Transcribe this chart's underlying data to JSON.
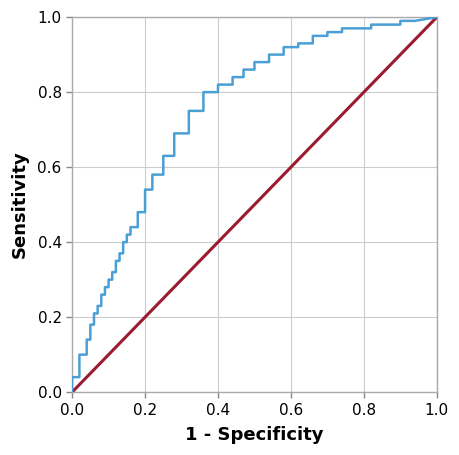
{
  "title": "",
  "xlabel": "1 - Specificity",
  "ylabel": "Sensitivity",
  "xlim": [
    0.0,
    1.0
  ],
  "ylim": [
    0.0,
    1.0
  ],
  "xticks": [
    0.0,
    0.2,
    0.4,
    0.6,
    0.8,
    1.0
  ],
  "yticks": [
    0.0,
    0.2,
    0.4,
    0.6,
    0.8,
    1.0
  ],
  "roc_color": "#4a9fd4",
  "diag_color": "#9b1b30",
  "roc_linewidth": 1.8,
  "diag_linewidth": 2.2,
  "grid_color": "#cccccc",
  "background_color": "#ffffff",
  "xlabel_fontsize": 13,
  "ylabel_fontsize": 13,
  "tick_fontsize": 11,
  "roc_x": [
    0.0,
    0.0,
    0.02,
    0.02,
    0.04,
    0.04,
    0.05,
    0.05,
    0.06,
    0.06,
    0.07,
    0.07,
    0.08,
    0.08,
    0.09,
    0.09,
    0.1,
    0.1,
    0.11,
    0.11,
    0.12,
    0.12,
    0.13,
    0.13,
    0.14,
    0.14,
    0.15,
    0.15,
    0.16,
    0.16,
    0.18,
    0.18,
    0.2,
    0.2,
    0.22,
    0.22,
    0.25,
    0.25,
    0.28,
    0.28,
    0.32,
    0.32,
    0.36,
    0.36,
    0.4,
    0.4,
    0.44,
    0.44,
    0.47,
    0.47,
    0.5,
    0.5,
    0.54,
    0.54,
    0.58,
    0.58,
    0.62,
    0.62,
    0.66,
    0.66,
    0.7,
    0.7,
    0.74,
    0.74,
    0.78,
    0.78,
    0.82,
    0.82,
    0.86,
    0.86,
    0.9,
    0.9,
    0.94,
    0.94,
    1.0
  ],
  "roc_y": [
    0.0,
    0.04,
    0.04,
    0.1,
    0.1,
    0.14,
    0.14,
    0.18,
    0.18,
    0.21,
    0.21,
    0.23,
    0.23,
    0.26,
    0.26,
    0.28,
    0.28,
    0.3,
    0.3,
    0.32,
    0.32,
    0.35,
    0.35,
    0.37,
    0.37,
    0.4,
    0.4,
    0.42,
    0.42,
    0.44,
    0.44,
    0.48,
    0.48,
    0.54,
    0.54,
    0.58,
    0.58,
    0.63,
    0.63,
    0.69,
    0.69,
    0.75,
    0.75,
    0.8,
    0.8,
    0.82,
    0.82,
    0.84,
    0.84,
    0.86,
    0.86,
    0.88,
    0.88,
    0.9,
    0.9,
    0.92,
    0.92,
    0.93,
    0.93,
    0.95,
    0.95,
    0.96,
    0.96,
    0.97,
    0.97,
    0.97,
    0.97,
    0.98,
    0.98,
    0.98,
    0.98,
    0.99,
    0.99,
    0.99,
    1.0
  ]
}
